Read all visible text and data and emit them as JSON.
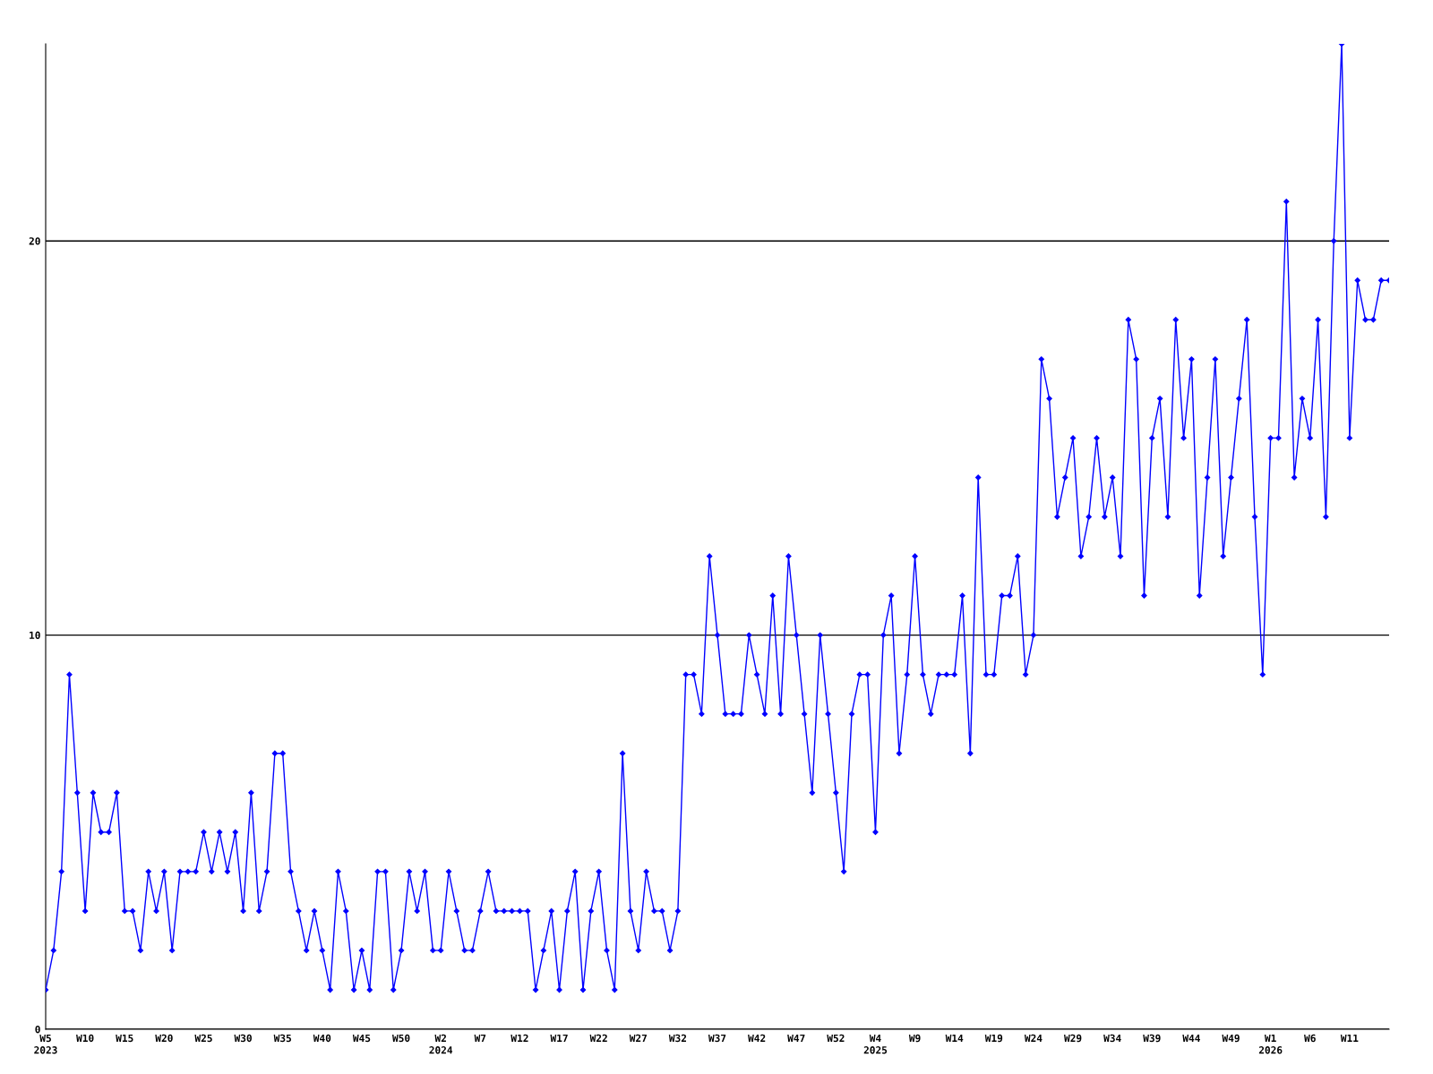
{
  "chart_data": {
    "type": "line",
    "categories": [
      "W5\n2023",
      null,
      null,
      null,
      null,
      "W10",
      null,
      null,
      null,
      null,
      "W15",
      null,
      null,
      null,
      null,
      "W20",
      null,
      null,
      null,
      null,
      "W25",
      null,
      null,
      null,
      null,
      "W30",
      null,
      null,
      null,
      null,
      "W35",
      null,
      null,
      null,
      null,
      "W40",
      null,
      null,
      null,
      null,
      "W45",
      null,
      null,
      null,
      null,
      "W50",
      null,
      null,
      null,
      null,
      "W2\n2024",
      null,
      null,
      null,
      null,
      "W7",
      null,
      null,
      null,
      null,
      "W12",
      null,
      null,
      null,
      null,
      "W17",
      null,
      null,
      null,
      null,
      "W22",
      null,
      null,
      null,
      null,
      "W27",
      null,
      null,
      null,
      null,
      "W32",
      null,
      null,
      null,
      null,
      "W37",
      null,
      null,
      null,
      null,
      "W42",
      null,
      null,
      null,
      null,
      "W47",
      null,
      null,
      null,
      null,
      "W52",
      null,
      null,
      null,
      null,
      "W4\n2025",
      null,
      null,
      null,
      null,
      "W9",
      null,
      null,
      null,
      null,
      "W14",
      null,
      null,
      null,
      null,
      "W19",
      null,
      null,
      null,
      null,
      "W24",
      null,
      null,
      null,
      null,
      "W29",
      null,
      null,
      null,
      null,
      "W34",
      null,
      null,
      null,
      null,
      "W39",
      null,
      null,
      null,
      null,
      "W44",
      null,
      null,
      null,
      null,
      "W49",
      null,
      null,
      null,
      null,
      "W1\n2026",
      null,
      null,
      null,
      null,
      "W6",
      null,
      null,
      null,
      null,
      "W11",
      null,
      null,
      null,
      null,
      null
    ],
    "series": [
      {
        "color": "#0000ff",
        "values": [
          1,
          2,
          4,
          9,
          6,
          3,
          6,
          5,
          5,
          6,
          3,
          3,
          2,
          4,
          3,
          4,
          2,
          4,
          4,
          4,
          5,
          4,
          5,
          4,
          5,
          3,
          6,
          3,
          4,
          7,
          7,
          4,
          3,
          2,
          3,
          2,
          1,
          4,
          3,
          1,
          2,
          1,
          4,
          4,
          1,
          2,
          4,
          3,
          4,
          2,
          2,
          4,
          3,
          2,
          2,
          3,
          4,
          3,
          3,
          3,
          3,
          3,
          1,
          2,
          3,
          1,
          3,
          4,
          1,
          3,
          4,
          2,
          1,
          7,
          3,
          2,
          4,
          3,
          3,
          2,
          3,
          9,
          9,
          8,
          12,
          10,
          8,
          8,
          8,
          10,
          9,
          8,
          11,
          8,
          12,
          10,
          8,
          6,
          10,
          8,
          6,
          4,
          8,
          9,
          9,
          5,
          10,
          11,
          7,
          9,
          12,
          9,
          8,
          9,
          9,
          9,
          11,
          7,
          14,
          9,
          9,
          11,
          11,
          12,
          9,
          10,
          17,
          16,
          13,
          14,
          15,
          12,
          13,
          15,
          13,
          14,
          12,
          18,
          17,
          11,
          15,
          16,
          13,
          18,
          15,
          17,
          11,
          14,
          17,
          12,
          14,
          16,
          18,
          13,
          9,
          15,
          15,
          21,
          14,
          16,
          15,
          18,
          13,
          20,
          25,
          15,
          19,
          18,
          18,
          19,
          19
        ]
      }
    ],
    "ylim": [
      0,
      25
    ],
    "yticks": [
      0,
      10,
      20
    ],
    "grid": "y",
    "marker": "diamond",
    "line_style": "solid"
  }
}
